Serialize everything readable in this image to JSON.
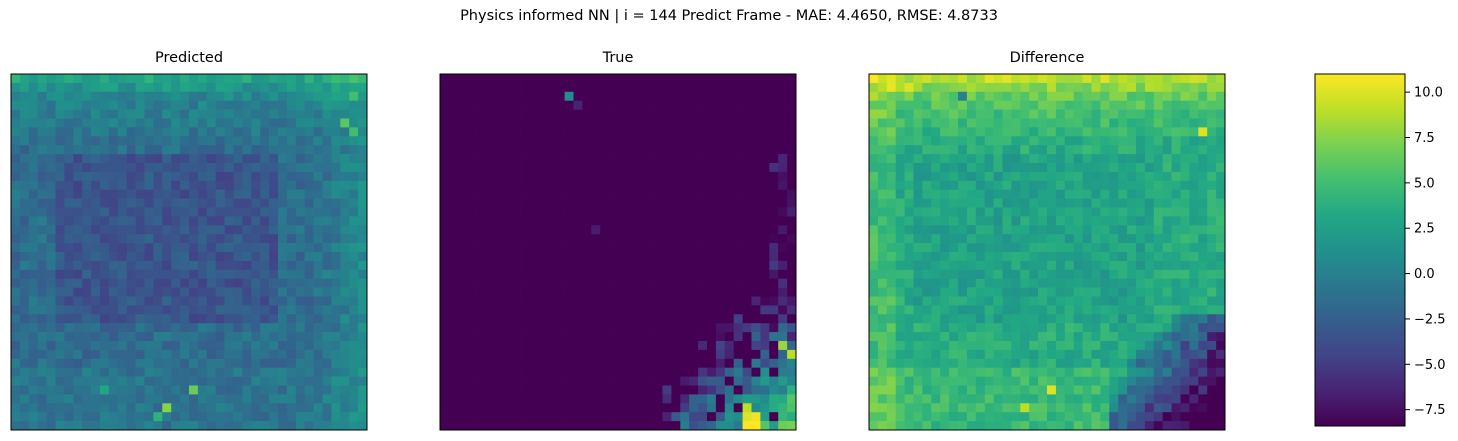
{
  "figure": {
    "suptitle": "Physics informed NN | i = 144 Predict Frame - MAE: 4.4650, RMSE: 4.8733"
  },
  "chart_data": {
    "type": "heatmap",
    "grid": {
      "rows": 40,
      "cols": 40
    },
    "colormap": "viridis",
    "axes_ticks": "none",
    "panels": [
      {
        "title": "Predicted",
        "description_of_values": "mostly -4 to 4; higher (3 to 6) along the top rows and right edge, lower (-3 to -5) in the centre-left band; a few bright pixels near the bottom",
        "hot_cells": [
          [
            35,
            20,
            6.5
          ],
          [
            37,
            17,
            7.5
          ],
          [
            38,
            16,
            4
          ],
          [
            35,
            10,
            3
          ],
          [
            2,
            38,
            5
          ],
          [
            5,
            37,
            6
          ],
          [
            6,
            38,
            5
          ]
        ]
      },
      {
        "title": "True",
        "description_of_values": "nearly all at the minimum (about -8.4); a region of higher values in the bottom-right corner (rows 25-39, cols 25-39) reaching about 11 at the corner; isolated small blips near the top-left",
        "hot_cells": [
          [
            2,
            14,
            1.0
          ],
          [
            3,
            15,
            -6.5
          ],
          [
            17,
            17,
            -6.8
          ],
          [
            38,
            34,
            10
          ],
          [
            38,
            35,
            10.5
          ],
          [
            39,
            34,
            11
          ],
          [
            39,
            35,
            11
          ],
          [
            37,
            34,
            9
          ],
          [
            30,
            38,
            8
          ],
          [
            31,
            39,
            9
          ]
        ]
      },
      {
        "title": "Difference",
        "description_of_values": "mostly 2 to 6; higher (8 to 11) along the top rows; lower (-2 to -8) toward the bottom-right corner; bright pixels near the bottom",
        "hot_cells": [
          [
            2,
            10,
            0
          ],
          [
            35,
            20,
            10
          ],
          [
            37,
            17,
            9
          ],
          [
            6,
            37,
            10
          ],
          [
            1,
            4,
            10
          ]
        ]
      }
    ],
    "colorbar": {
      "vmin": -8.4,
      "vmax": 11.0,
      "ticks": [
        -7.5,
        -5.0,
        -2.5,
        0.0,
        2.5,
        5.0,
        7.5,
        10.0
      ],
      "tick_labels": [
        "−7.5",
        "−5.0",
        "−2.5",
        "0.0",
        "2.5",
        "5.0",
        "7.5",
        "10.0"
      ]
    }
  }
}
